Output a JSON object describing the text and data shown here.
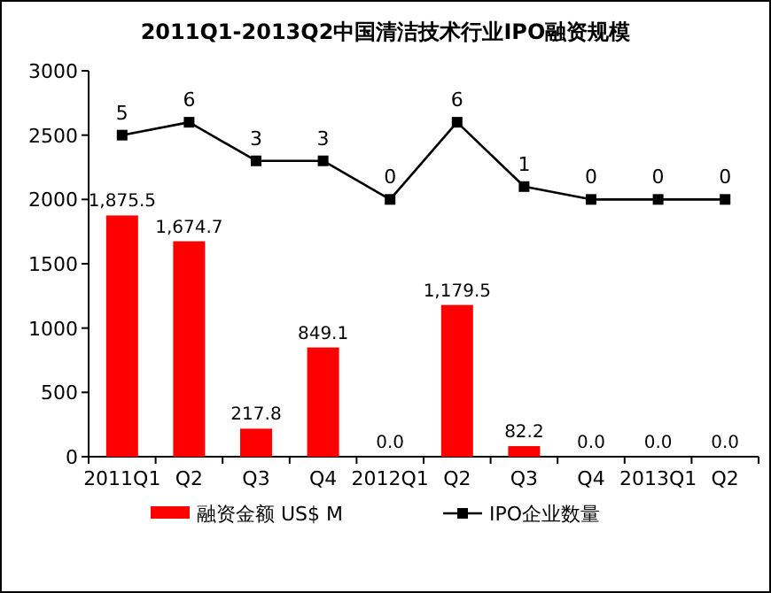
{
  "chart_data": {
    "type": "bar",
    "title": "2011Q1-2013Q2中国清洁技术行业IPO融资规模",
    "categories": [
      "2011Q1",
      "Q2",
      "Q3",
      "Q4",
      "2012Q1",
      "Q2",
      "Q3",
      "Q4",
      "2013Q1",
      "Q2"
    ],
    "series": [
      {
        "name": "融资金额 US$ M",
        "color": "#ff0000",
        "values": [
          1875.5,
          1674.7,
          217.8,
          849.1,
          0,
          1179.5,
          82.2,
          0,
          0,
          0
        ],
        "value_labels": [
          "1,875.5",
          "1,674.7",
          "217.8",
          "849.1",
          "0.0",
          "1,179.5",
          "82.2",
          "0.0",
          "0.0",
          "0.0"
        ]
      },
      {
        "name": "IPO企业数量",
        "type": "line",
        "axis": "y2",
        "color": "#000000",
        "values": [
          5,
          6,
          3,
          3,
          0,
          6,
          1,
          0,
          0,
          0
        ],
        "value_labels": [
          "5",
          "6",
          "3",
          "3",
          "0",
          "6",
          "1",
          "0",
          "0",
          "0"
        ]
      }
    ],
    "ylim": [
      0,
      3000
    ],
    "yticks": [
      0,
      500,
      1000,
      1500,
      2000,
      2500,
      3000
    ],
    "y2lim": [
      -20,
      10
    ],
    "marker": "square",
    "legend": "bottom"
  }
}
